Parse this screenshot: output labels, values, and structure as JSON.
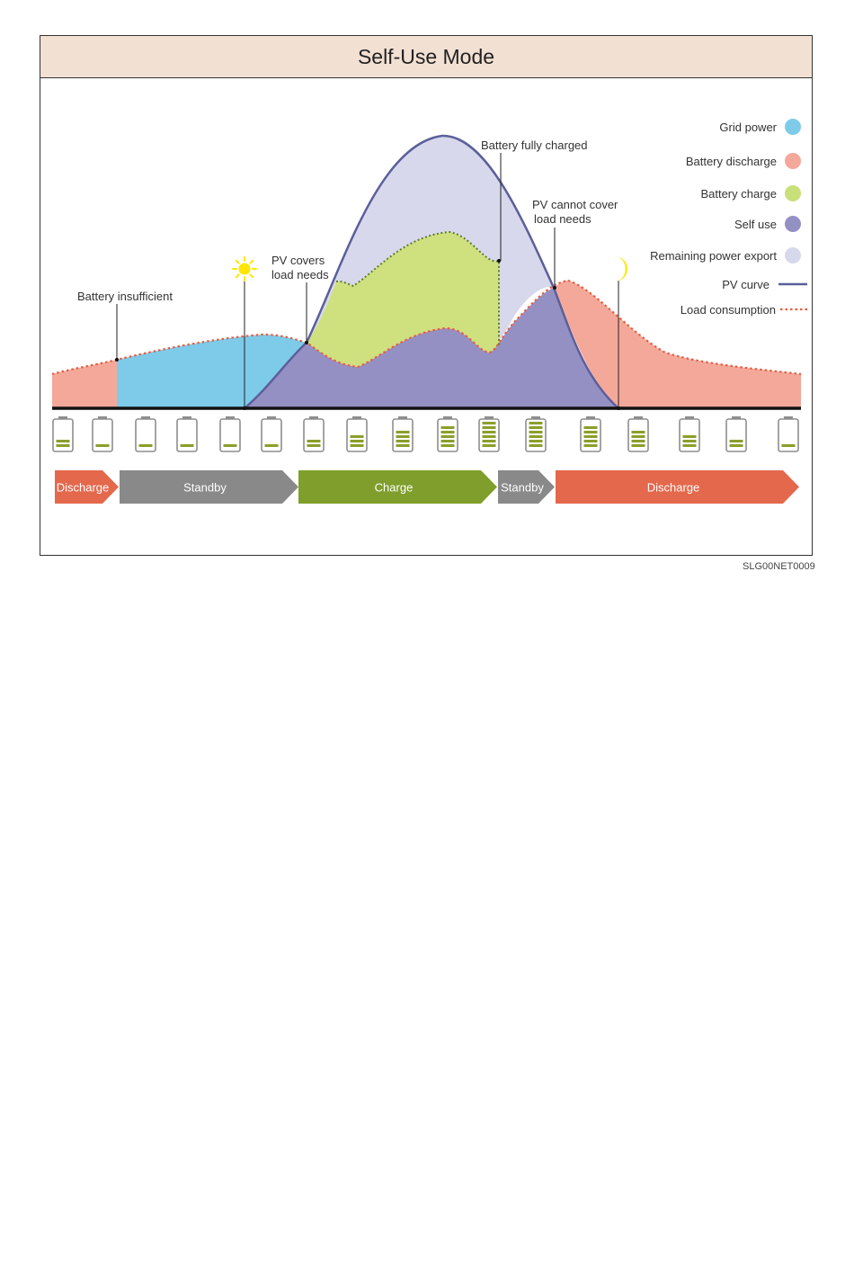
{
  "title": "Self-Use Mode",
  "figure_code": "SLG00NET0009",
  "annotations": {
    "battery_insufficient": "Battery insufficient",
    "pv_covers": [
      "PV covers",
      "load needs"
    ],
    "battery_fully_charged": "Battery fully charged",
    "pv_cannot_cover": [
      "PV cannot cover",
      "load needs"
    ]
  },
  "icons": {
    "sunrise": "sun-icon",
    "sunset": "moon-icon"
  },
  "legend": [
    {
      "label": "Grid power",
      "color": "#7ecbe9",
      "kind": "dot"
    },
    {
      "label": "Battery discharge",
      "color": "#f4a89a",
      "kind": "dot"
    },
    {
      "label": "Battery charge",
      "color": "#c9e07a",
      "kind": "dot"
    },
    {
      "label": "Self use",
      "color": "#9590c4",
      "kind": "dot"
    },
    {
      "label": "Remaining power export",
      "color": "#d8d8ec",
      "kind": "dot"
    },
    {
      "label": "PV curve",
      "color": "#5b5f9a",
      "kind": "line"
    },
    {
      "label": "Load consumption",
      "color": "#e85c3f",
      "kind": "dotted"
    }
  ],
  "battery_levels": [
    2,
    1,
    1,
    1,
    1,
    1,
    2,
    3,
    4,
    5,
    6,
    6,
    5,
    4,
    3,
    2,
    1
  ],
  "states": [
    {
      "label": "Discharge",
      "color": "#e4684c"
    },
    {
      "label": "Standby",
      "color": "#898989"
    },
    {
      "label": "Charge",
      "color": "#7f9e2b"
    },
    {
      "label": "Standby",
      "color": "#898989"
    },
    {
      "label": "Discharge",
      "color": "#e4684c"
    }
  ],
  "colors": {
    "grid": "#7ecbe9",
    "discharge": "#f4a89a",
    "charge": "#cfe07f",
    "self_use": "#9590c4",
    "export": "#d8d8ec",
    "pv_line": "#5b5f9a",
    "load_line": "#e85c3f",
    "battery_bar": "#8a9f2c"
  }
}
